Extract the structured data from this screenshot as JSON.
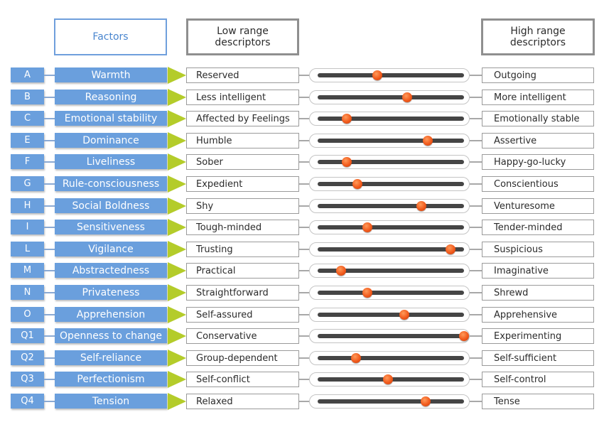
{
  "headers": {
    "factors": "Factors",
    "low": "Low range\ndescriptors",
    "high": "High range\ndescriptors"
  },
  "colors": {
    "factor_fill": "#6a9fdd",
    "arrow": "#b4cc2a",
    "knob": "#f15a1c",
    "track": "#454545"
  },
  "rows": [
    {
      "code": "A",
      "factor": "Warmth",
      "low": "Reserved",
      "high": "Outgoing",
      "level": 0.41
    },
    {
      "code": "B",
      "factor": "Reasoning",
      "low": "Less intelligent",
      "high": "More intelligent",
      "level": 0.61
    },
    {
      "code": "C",
      "factor": "Emotional stability",
      "low": "Affected by Feelings",
      "high": "Emotionally stable",
      "level": 0.2
    },
    {
      "code": "E",
      "factor": "Dominance",
      "low": "Humble",
      "high": "Assertive",
      "level": 0.75
    },
    {
      "code": "F",
      "factor": "Liveliness",
      "low": "Sober",
      "high": "Happy-go-lucky",
      "level": 0.2
    },
    {
      "code": "G",
      "factor": "Rule-consciousness",
      "low": "Expedient",
      "high": "Conscientious",
      "level": 0.27
    },
    {
      "code": "H",
      "factor": "Social Boldness",
      "low": "Shy",
      "high": "Venturesome",
      "level": 0.71
    },
    {
      "code": "I",
      "factor": "Sensitiveness",
      "low": "Tough-minded",
      "high": "Tender-minded",
      "level": 0.34
    },
    {
      "code": "L",
      "factor": "Vigilance",
      "low": "Trusting",
      "high": "Suspicious",
      "level": 0.91
    },
    {
      "code": "M",
      "factor": "Abstractedness",
      "low": "Practical",
      "high": "Imaginative",
      "level": 0.16
    },
    {
      "code": "N",
      "factor": "Privateness",
      "low": "Straightforward",
      "high": "Shrewd",
      "level": 0.34
    },
    {
      "code": "O",
      "factor": "Apprehension",
      "low": "Self-assured",
      "high": "Apprehensive",
      "level": 0.59
    },
    {
      "code": "Q1",
      "factor": "Openness to change",
      "low": "Conservative",
      "high": "Experimenting",
      "level": 1.0
    },
    {
      "code": "Q2",
      "factor": "Self-reliance",
      "low": "Group-dependent",
      "high": "Self-sufficient",
      "level": 0.26
    },
    {
      "code": "Q3",
      "factor": "Perfectionism",
      "low": "Self-conflict",
      "high": "Self-control",
      "level": 0.48
    },
    {
      "code": "Q4",
      "factor": "Tension",
      "low": "Relaxed",
      "high": "Tense",
      "level": 0.74
    }
  ]
}
